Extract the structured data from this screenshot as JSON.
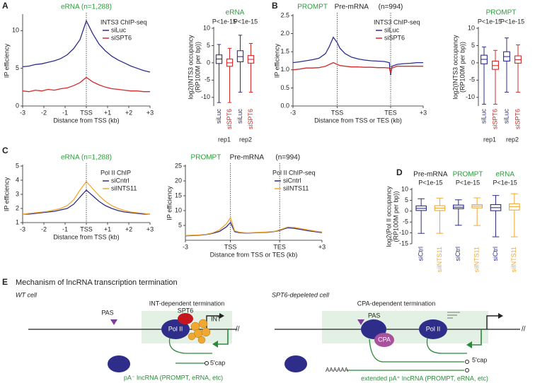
{
  "panel_labels": [
    "A",
    "B",
    "C",
    "D",
    "E"
  ],
  "chart_data": [
    {
      "type": "line",
      "title": "eRNA (n=1,288)",
      "title_color": "#2a9d3a",
      "xlabel": "Distance from TSS (kb)",
      "ylabel": "IP efficiency",
      "legend_title": "INTS3 ChIP-seq",
      "x": [
        -3,
        -2.7,
        -2.4,
        -2.1,
        -1.8,
        -1.5,
        -1.2,
        -0.9,
        -0.6,
        -0.3,
        0,
        0.3,
        0.6,
        0.9,
        1.2,
        1.5,
        1.8,
        2.1,
        2.4,
        2.7,
        3
      ],
      "series": [
        {
          "name": "siLuc",
          "color": "#2e2e8a",
          "values": [
            5.2,
            5.3,
            5.5,
            5.6,
            5.8,
            6.0,
            6.3,
            6.8,
            7.6,
            8.8,
            11.3,
            9.6,
            8.2,
            7.3,
            6.6,
            6.1,
            5.7,
            5.3,
            5.0,
            4.7,
            4.5
          ]
        },
        {
          "name": "siSPT6",
          "color": "#d42a2a",
          "values": [
            2.0,
            1.9,
            2.1,
            2.0,
            2.2,
            2.1,
            2.3,
            2.4,
            2.7,
            3.1,
            3.8,
            3.2,
            2.8,
            2.5,
            2.3,
            2.2,
            2.1,
            2.0,
            2.0,
            1.9,
            1.9
          ]
        }
      ],
      "xlim": [
        -3,
        3
      ],
      "xticks": [
        -3,
        -2,
        -1,
        {
          "value": 0,
          "label": "TSS"
        },
        {
          "value": 1,
          "label": "+1"
        },
        {
          "value": 2,
          "label": "+2"
        },
        {
          "value": 3,
          "label": "+3"
        }
      ],
      "ylim": [
        0,
        12
      ],
      "yticks": [
        0,
        5,
        10
      ],
      "vlines": [
        0
      ]
    },
    {
      "type": "box",
      "title": "eRNA",
      "title_color": "#2a9d3a",
      "ylabel": [
        "log2(INTS3 occupancy",
        "(RP100M per bp))"
      ],
      "ylim": [
        -12.5,
        10
      ],
      "yticks": [
        -10,
        -5,
        0,
        5,
        10
      ],
      "groups": [
        {
          "label": "rep1",
          "pvalue": "P<1e-15",
          "boxes": [
            {
              "label": "siLuc",
              "color": "#2e2e8a",
              "min": -11.5,
              "q1": -0.2,
              "median": 1.1,
              "q3": 2.3,
              "max": 5.3
            },
            {
              "label": "siSPT6",
              "color": "#d42a2a",
              "min": -11.5,
              "q1": -1.0,
              "median": 0,
              "q3": 1.1,
              "max": 4.2
            }
          ]
        },
        {
          "label": "rep2",
          "pvalue": "P<1e-15",
          "boxes": [
            {
              "label": "siLuc",
              "color": "#2e2e8a",
              "min": -8.5,
              "q1": 0.3,
              "median": 1.8,
              "q3": 3.5,
              "max": 8
            },
            {
              "label": "siSPT6",
              "color": "#d42a2a",
              "min": -8.5,
              "q1": -0.1,
              "median": 1.0,
              "q3": 2.1,
              "max": 5.6
            }
          ]
        }
      ]
    },
    {
      "type": "line",
      "annotations": [
        {
          "text": "PROMPT",
          "color": "#2a9d3a"
        },
        {
          "text": "Pre-mRNA",
          "color": "#222222"
        },
        {
          "text": "(n=994)",
          "color": "#222222"
        }
      ],
      "xlabel": "Distance from TSS or TES (kb)",
      "ylabel": "IP efficiency",
      "legend_title": "INTS3 ChIP-seq",
      "x": [
        0,
        5,
        10,
        15,
        20,
        25,
        28,
        31,
        34,
        36,
        40,
        45,
        50,
        55,
        60,
        65,
        70,
        74,
        75,
        76,
        80,
        85,
        90,
        95,
        100
      ],
      "series": [
        {
          "name": "siLuc",
          "color": "#2e2e8a",
          "values": [
            1.2,
            1.22,
            1.25,
            1.28,
            1.32,
            1.45,
            1.65,
            1.9,
            1.75,
            1.6,
            1.45,
            1.35,
            1.3,
            1.27,
            1.25,
            1.24,
            1.23,
            1.2,
            0.85,
            1.1,
            1.15,
            1.17,
            1.18,
            1.2,
            1.2
          ]
        },
        {
          "name": "siSPT6",
          "color": "#d42a2a",
          "values": [
            1.0,
            1.02,
            1.05,
            1.05,
            1.06,
            1.1,
            1.15,
            1.2,
            1.15,
            1.12,
            1.1,
            1.08,
            1.08,
            1.07,
            1.07,
            1.06,
            1.06,
            1.05,
            0.9,
            1.05,
            1.1,
            1.1,
            1.1,
            1.1,
            1.1
          ]
        }
      ],
      "xlim": [
        0,
        100
      ],
      "xticks": [
        {
          "value": 0,
          "label": "-3"
        },
        {
          "value": 34,
          "label": "TSS"
        },
        {
          "value": 75,
          "label": "TES"
        },
        {
          "value": 100,
          "label": "+3"
        }
      ],
      "ylim": [
        0,
        2.5
      ],
      "yticks": [
        {
          "value": 0,
          "label": "0.0"
        },
        0.5,
        {
          "value": 1,
          "label": "1.0"
        },
        1.5,
        {
          "value": 2,
          "label": "2.0"
        },
        2.5
      ],
      "vlines": [
        34,
        75
      ]
    },
    {
      "type": "box",
      "title": "PROMPT",
      "title_color": "#2a9d3a",
      "ylabel": [
        "log2(INTS3 occupancy",
        "(RP100M per bp))"
      ],
      "ylim": [
        -12.5,
        10
      ],
      "yticks": [
        -10,
        -5,
        0,
        5,
        10
      ],
      "groups": [
        {
          "label": "rep1",
          "pvalue": "P<1e-15",
          "boxes": [
            {
              "label": "siLuc",
              "color": "#2e2e8a",
              "min": -12,
              "q1": -0.3,
              "median": 1.0,
              "q3": 2.2,
              "max": 4.6
            },
            {
              "label": "siSPT6",
              "color": "#d42a2a",
              "min": -12,
              "q1": -1.9,
              "median": -0.8,
              "q3": 0.5,
              "max": 3.6
            }
          ]
        },
        {
          "label": "rep2",
          "pvalue": "P<1e-15",
          "boxes": [
            {
              "label": "siLuc",
              "color": "#2e2e8a",
              "min": -8.5,
              "q1": 0.5,
              "median": 1.8,
              "q3": 3.2,
              "max": 7.2
            },
            {
              "label": "siSPT6",
              "color": "#d42a2a",
              "min": -8.5,
              "q1": -0.1,
              "median": 0.9,
              "q3": 2.0,
              "max": 5.2
            }
          ]
        }
      ]
    },
    {
      "type": "line",
      "title": "eRNA (n=1,288)",
      "title_color": "#2a9d3a",
      "xlabel": "Distance from TSS (kb)",
      "ylabel": "IP efficiency",
      "legend_title": "Pol II ChIP",
      "x": [
        -3,
        -2.7,
        -2.4,
        -2.1,
        -1.8,
        -1.5,
        -1.2,
        -0.9,
        -0.6,
        -0.3,
        0,
        0.3,
        0.6,
        0.9,
        1.2,
        1.5,
        1.8,
        2.1,
        2.4,
        2.7,
        3
      ],
      "series": [
        {
          "name": "siCntrl",
          "color": "#2e2e8a",
          "values": [
            1.6,
            1.6,
            1.65,
            1.7,
            1.75,
            1.8,
            1.9,
            2.0,
            2.3,
            2.8,
            3.3,
            2.9,
            2.5,
            2.2,
            2.0,
            1.85,
            1.75,
            1.7,
            1.65,
            1.6,
            1.6
          ]
        },
        {
          "name": "siINTS11",
          "color": "#f0a830",
          "values": [
            1.6,
            1.65,
            1.7,
            1.75,
            1.8,
            1.9,
            2.0,
            2.2,
            2.6,
            3.3,
            3.9,
            3.4,
            2.9,
            2.5,
            2.2,
            2.0,
            1.85,
            1.75,
            1.7,
            1.65,
            1.6
          ]
        }
      ],
      "xlim": [
        -3,
        3
      ],
      "xticks": [
        -3,
        -2,
        -1,
        {
          "value": 0,
          "label": "TSS"
        },
        {
          "value": 1,
          "label": "+1"
        },
        {
          "value": 2,
          "label": "+2"
        },
        {
          "value": 3,
          "label": "+3"
        }
      ],
      "ylim": [
        1,
        5
      ],
      "yticks": [
        1,
        2,
        3,
        4,
        5
      ],
      "vlines": [
        0
      ]
    },
    {
      "type": "line",
      "annotations": [
        {
          "text": "PROMPT",
          "color": "#2a9d3a"
        },
        {
          "text": "Pre-mRNA",
          "color": "#222222"
        },
        {
          "text": "(n=994)",
          "color": "#222222"
        }
      ],
      "xlabel": "Distance from TSS or TES (kb)",
      "ylabel": "IP efficiency",
      "legend_title": "Pol II ChIP-seq",
      "x": [
        0,
        5,
        10,
        15,
        20,
        25,
        30,
        33,
        36,
        40,
        45,
        50,
        55,
        60,
        63,
        66,
        69,
        72,
        75,
        80,
        85,
        90,
        95,
        98,
        100
      ],
      "series": [
        {
          "name": "siCntrl",
          "color": "#2e2e8a",
          "values": [
            1.5,
            1.6,
            1.7,
            1.9,
            2.3,
            3.0,
            4.5,
            6.0,
            2.9,
            2.5,
            2.4,
            2.5,
            2.6,
            2.7,
            2.8,
            3.0,
            3.3,
            3.8,
            4.2,
            4.0,
            3.6,
            3.2,
            2.9,
            2.7,
            2.6
          ]
        },
        {
          "name": "siINTS11",
          "color": "#f0a830",
          "values": [
            1.6,
            1.7,
            1.8,
            2.0,
            2.5,
            3.5,
            5.5,
            7.6,
            3.2,
            2.7,
            2.5,
            2.6,
            2.7,
            2.8,
            2.9,
            3.1,
            3.5,
            4.0,
            4.5,
            4.3,
            3.9,
            3.5,
            3.1,
            2.9,
            2.8
          ]
        }
      ],
      "xlim": [
        0,
        100
      ],
      "xticks": [
        {
          "value": 0,
          "label": "-3"
        },
        {
          "value": 33,
          "label": "TSS"
        },
        {
          "value": 69,
          "label": "TES"
        },
        {
          "value": 100,
          "label": "+3"
        }
      ],
      "ylim": [
        0,
        25
      ],
      "yticks": [
        5,
        10,
        15,
        20,
        25
      ],
      "vlines": [
        33,
        69
      ]
    },
    {
      "type": "box",
      "ylabel": [
        "log2(Pol II occupancy",
        "(RP100M per bp))"
      ],
      "ylim": [
        -15,
        10
      ],
      "yticks": [
        -15,
        -10,
        -5,
        0,
        5,
        10
      ],
      "groups": [
        {
          "name": "Pre-mRNA",
          "name_color": "#222222",
          "pvalue": "P<1e-15",
          "boxes": [
            {
              "label": "siCtrl",
              "color": "#2e2e8a",
              "min": -10.2,
              "q1": 0.3,
              "median": 1.3,
              "q3": 2.4,
              "max": 5.7
            },
            {
              "label": "siINTS11",
              "color": "#f0a830",
              "min": -10.2,
              "q1": 0.3,
              "median": 1.4,
              "q3": 2.5,
              "max": 6
            }
          ]
        },
        {
          "name": "PROMPT",
          "name_color": "#2a9d3a",
          "pvalue": "P<1e-15",
          "boxes": [
            {
              "label": "siCtrl",
              "color": "#2e2e8a",
              "min": -6.5,
              "q1": 1.1,
              "median": 1.8,
              "q3": 2.8,
              "max": 5.2
            },
            {
              "label": "siINTS11",
              "color": "#f0a830",
              "min": -6.6,
              "q1": 1.5,
              "median": 2.3,
              "q3": 3.0,
              "max": 6.1
            }
          ]
        },
        {
          "name": "eRNA",
          "name_color": "#2a9d3a",
          "pvalue": "P<1e-15",
          "boxes": [
            {
              "label": "siCtrl",
              "color": "#2e2e8a",
              "min": -11.8,
              "q1": 0.2,
              "median": 1.6,
              "q3": 3.0,
              "max": 7.2
            },
            {
              "label": "siINTS11",
              "color": "#f0a830",
              "min": -11.8,
              "q1": 0.5,
              "median": 2.1,
              "q3": 3.4,
              "max": 8
            }
          ]
        }
      ]
    }
  ],
  "diagram": {
    "title": "Mechanism of lncRNA transcription termination",
    "break_mark": "//",
    "left": {
      "cell": "WT cell",
      "pas": "PAS",
      "termination": "INT-dependent termination",
      "spt6": "SPT6",
      "int": "INT",
      "pol": "Pol II",
      "cap": "5'cap",
      "product": "pA⁻ lncRNA (PROMPT, eRNA, etc)"
    },
    "right": {
      "cell": "SPT6-depeleted cell",
      "termination": "CPA-dependent termination",
      "pas": "PAS",
      "cpa": "CPA",
      "pol": "Pol II",
      "cap": "5'cap",
      "polya": "AAAAAA",
      "product": "extended pA⁺ lncRNA (PROMPT, eRNA, etc)"
    }
  }
}
